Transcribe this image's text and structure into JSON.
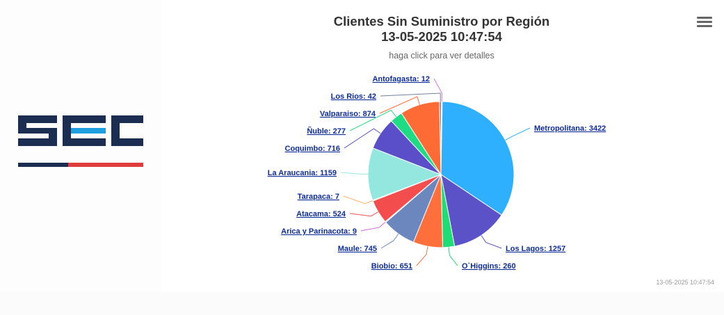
{
  "logo": {
    "text": "SEC",
    "colors": {
      "navy": "#1c2d52",
      "accent_blue": "#1f9fe0",
      "red": "#e03c3c"
    }
  },
  "menu": {
    "icon": "hamburger-menu-icon"
  },
  "chart_data": {
    "type": "pie",
    "title_line1": "Clientes Sin Suministro por Región",
    "title_line2": "13-05-2025 10:47:54",
    "subtitle": "haga click para ver detalles",
    "credit": "13-05-2025 10:47:54",
    "slices": [
      {
        "name": "Metropolitana",
        "value": 3422,
        "label": "Metropolitana: 3422",
        "color": "#2fb0ff"
      },
      {
        "name": "Los Lagos",
        "value": 1257,
        "label": "Los Lagos: 1257",
        "color": "#5b52c7"
      },
      {
        "name": "O`Higgins",
        "value": 260,
        "label": "O`Higgins: 260",
        "color": "#1fdc74"
      },
      {
        "name": "Biobio",
        "value": 651,
        "label": "Biobio: 651",
        "color": "#ff6f3c"
      },
      {
        "name": "Maule",
        "value": 745,
        "label": "Maule: 745",
        "color": "#6b87be"
      },
      {
        "name": "Arica y Parinacota",
        "value": 9,
        "label": "Arica y Parinacota: 9",
        "color": "#cc66dd"
      },
      {
        "name": "Atacama",
        "value": 524,
        "label": "Atacama: 524",
        "color": "#f44d4d"
      },
      {
        "name": "Tarapaca",
        "value": 7,
        "label": "Tarapaca: 7",
        "color": "#ffb266"
      },
      {
        "name": "La Araucania",
        "value": 1159,
        "label": "La Araucania: 1159",
        "color": "#93e7df"
      },
      {
        "name": "Coquimbo",
        "value": 716,
        "label": "Coquimbo: 716",
        "color": "#5a4fc9"
      },
      {
        "name": "Ñuble",
        "value": 277,
        "label": "Ñuble: 277",
        "color": "#1fdc84"
      },
      {
        "name": "Valparaiso",
        "value": 874,
        "label": "Valparaiso: 874",
        "color": "#ff6b35"
      },
      {
        "name": "Los Rios",
        "value": 42,
        "label": "Los Rios: 42",
        "color": "#7080a0"
      },
      {
        "name": "Antofagasta",
        "value": 12,
        "label": "Antofagasta: 12",
        "color": "#d078e8"
      }
    ]
  }
}
